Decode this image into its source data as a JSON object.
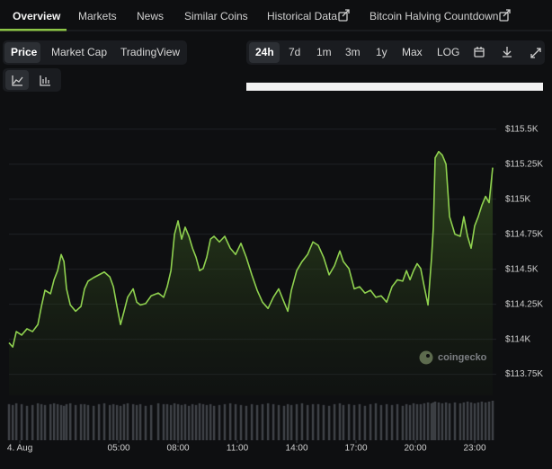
{
  "tabs": [
    "Overview",
    "Markets",
    "News",
    "Similar Coins",
    "Historical Data",
    "Bitcoin Halving Countdown"
  ],
  "chart_views": [
    "Price",
    "Market Cap",
    "TradingView"
  ],
  "ranges": [
    "24h",
    "7d",
    "1m",
    "3m",
    "1y",
    "Max",
    "LOG"
  ],
  "watermark": "coingecko",
  "chart_data": {
    "type": "line",
    "color": "#8fd14f",
    "x": [
      -0.55,
      -0.36,
      -0.18,
      0.09,
      0.36,
      0.64,
      0.91,
      1.09,
      1.27,
      1.55,
      1.73,
      1.91,
      2.09,
      2.23,
      2.36,
      2.55,
      2.82,
      3.09,
      3.27,
      3.45,
      3.73,
      4,
      4.27,
      4.55,
      4.73,
      4.91,
      5.09,
      5.27,
      5.45,
      5.73,
      5.91,
      6.09,
      6.36,
      6.64,
      7,
      7.27,
      7.45,
      7.64,
      7.82,
      8,
      8.18,
      8.36,
      8.55,
      8.73,
      8.91,
      9.09,
      9.27,
      9.45,
      9.64,
      9.82,
      10.09,
      10.36,
      10.64,
      10.91,
      11.18,
      11.45,
      11.73,
      12,
      12.27,
      12.55,
      12.82,
      13.09,
      13.36,
      13.55,
      13.73,
      14,
      14.27,
      14.55,
      14.82,
      15.09,
      15.36,
      15.64,
      15.91,
      16.18,
      16.36,
      16.64,
      16.91,
      17.18,
      17.45,
      17.73,
      18,
      18.27,
      18.55,
      18.82,
      19.09,
      19.36,
      19.55,
      19.73,
      19.91,
      20.09,
      20.27,
      20.45,
      20.64,
      20.82,
      20.91,
      21,
      21.18,
      21.36,
      21.55,
      21.73,
      22,
      22.27,
      22.45,
      22.64,
      22.82,
      23,
      23.18,
      23.36,
      23.55,
      23.73,
      23.91
    ],
    "values": [
      113975,
      113945,
      114055,
      114030,
      114075,
      114055,
      114105,
      114235,
      114350,
      114325,
      114425,
      114490,
      114605,
      114555,
      114360,
      114245,
      114200,
      114235,
      114360,
      114415,
      114440,
      114460,
      114480,
      114445,
      114375,
      114235,
      114105,
      114200,
      114300,
      114360,
      114265,
      114245,
      114255,
      114310,
      114330,
      114300,
      114375,
      114490,
      114750,
      114845,
      114715,
      114800,
      114735,
      114650,
      114585,
      114490,
      114505,
      114585,
      114715,
      114735,
      114695,
      114735,
      114650,
      114605,
      114685,
      114585,
      114460,
      114350,
      114265,
      114220,
      114300,
      114360,
      114265,
      114200,
      114350,
      114490,
      114555,
      114605,
      114695,
      114670,
      114585,
      114460,
      114525,
      114630,
      114555,
      114505,
      114360,
      114375,
      114330,
      114350,
      114300,
      114310,
      114265,
      114375,
      114425,
      114415,
      114490,
      114425,
      114490,
      114540,
      114505,
      114375,
      114245,
      114585,
      114800,
      115295,
      115340,
      115315,
      115250,
      114875,
      114750,
      114735,
      114875,
      114735,
      114650,
      114810,
      114875,
      114955,
      115020,
      114975,
      115225
    ],
    "volume": [
      42,
      41,
      43,
      42,
      40,
      41,
      43,
      42,
      41,
      42,
      43,
      42,
      41,
      40,
      42,
      43,
      41,
      42,
      42,
      41,
      40,
      42,
      43,
      41,
      42,
      41,
      40,
      42,
      43,
      42,
      41,
      42,
      40,
      41,
      43,
      42,
      42,
      41,
      43,
      42,
      41,
      42,
      40,
      42,
      41,
      43,
      42,
      41,
      42,
      40,
      41,
      42,
      43,
      42,
      41,
      40,
      42,
      41,
      42,
      43,
      42,
      41,
      40,
      42,
      41,
      42,
      43,
      41,
      42,
      42,
      41,
      40,
      42,
      43,
      41,
      42,
      41,
      42,
      40,
      42,
      43,
      41,
      42,
      41,
      42,
      40,
      42,
      41,
      43,
      42,
      42,
      43,
      44,
      43,
      44,
      45,
      44,
      43,
      44,
      43,
      44,
      43,
      44,
      45,
      44,
      43,
      44,
      45,
      44,
      45,
      46
    ],
    "xlim": [
      -0.55,
      24
    ],
    "xticks": [
      {
        "value": 0,
        "label": "4. Aug"
      },
      {
        "value": 5,
        "label": "05:00"
      },
      {
        "value": 8,
        "label": "08:00"
      },
      {
        "value": 11,
        "label": "11:00"
      },
      {
        "value": 14,
        "label": "14:00"
      },
      {
        "value": 17,
        "label": "17:00"
      },
      {
        "value": 20,
        "label": "20:00"
      },
      {
        "value": 23,
        "label": "23:00"
      }
    ],
    "ylim": [
      113600,
      115620
    ],
    "yticks": [
      {
        "value": 113750,
        "label": "$113.75K"
      },
      {
        "value": 114000,
        "label": "$114K"
      },
      {
        "value": 114250,
        "label": "$114.25K"
      },
      {
        "value": 114500,
        "label": "$114.5K"
      },
      {
        "value": 114750,
        "label": "$114.75K"
      },
      {
        "value": 115000,
        "label": "$115K"
      },
      {
        "value": 115250,
        "label": "$115.25K"
      },
      {
        "value": 115500,
        "label": "$115.5K"
      }
    ],
    "grid": true
  }
}
